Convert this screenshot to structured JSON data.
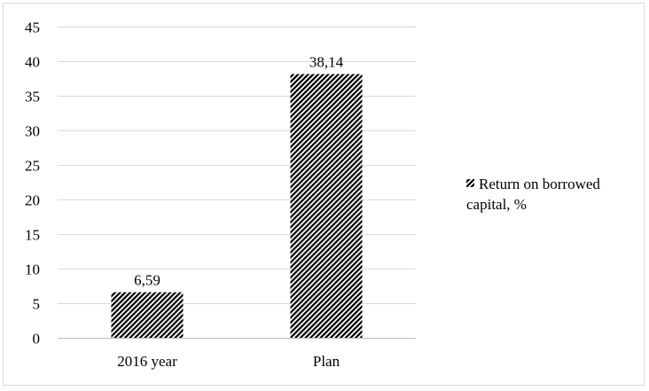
{
  "chart_data": {
    "type": "bar",
    "categories": [
      "2016 year",
      "Plan"
    ],
    "series": [
      {
        "name": "Return on borrowed capital, %",
        "values": [
          6.59,
          38.14
        ]
      }
    ],
    "data_labels": [
      "6,59",
      "38,14"
    ],
    "ylim": [
      0,
      45
    ],
    "yticks": [
      0,
      5,
      10,
      15,
      20,
      25,
      30,
      35,
      40,
      45
    ],
    "grid": true,
    "legend": {
      "placement": "right",
      "lines": [
        "Return on borrowed",
        "capital, %"
      ]
    },
    "bar_fill": "diagonal-hatch",
    "colors": {
      "bar": "#000000",
      "grid": "#d9d9d9",
      "axis": "#bfbfbf"
    }
  }
}
